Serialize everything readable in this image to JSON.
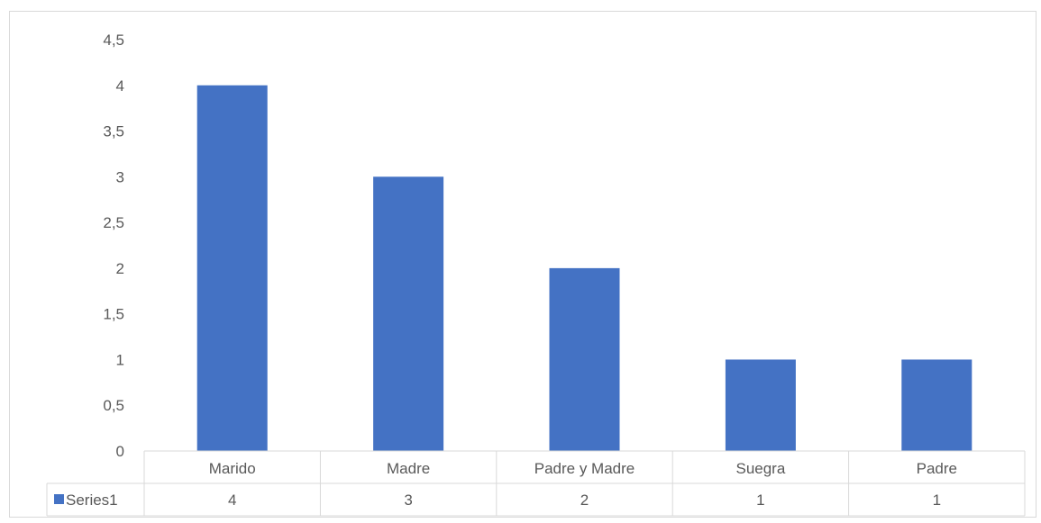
{
  "chart_data": {
    "type": "bar",
    "categories": [
      "Marido",
      "Madre",
      "Padre y Madre",
      "Suegra",
      "Padre"
    ],
    "series": [
      {
        "name": "Series1",
        "values": [
          4,
          3,
          2,
          1,
          1
        ],
        "color": "#4472c4"
      }
    ],
    "ylim": [
      0,
      4.5
    ],
    "yticks": [
      "0",
      "0,5",
      "1",
      "1,5",
      "2",
      "2,5",
      "3",
      "3,5",
      "4",
      "4,5"
    ],
    "grid": false,
    "legend": "data-table",
    "data_table": true,
    "title": "",
    "xlabel": "",
    "ylabel": ""
  }
}
